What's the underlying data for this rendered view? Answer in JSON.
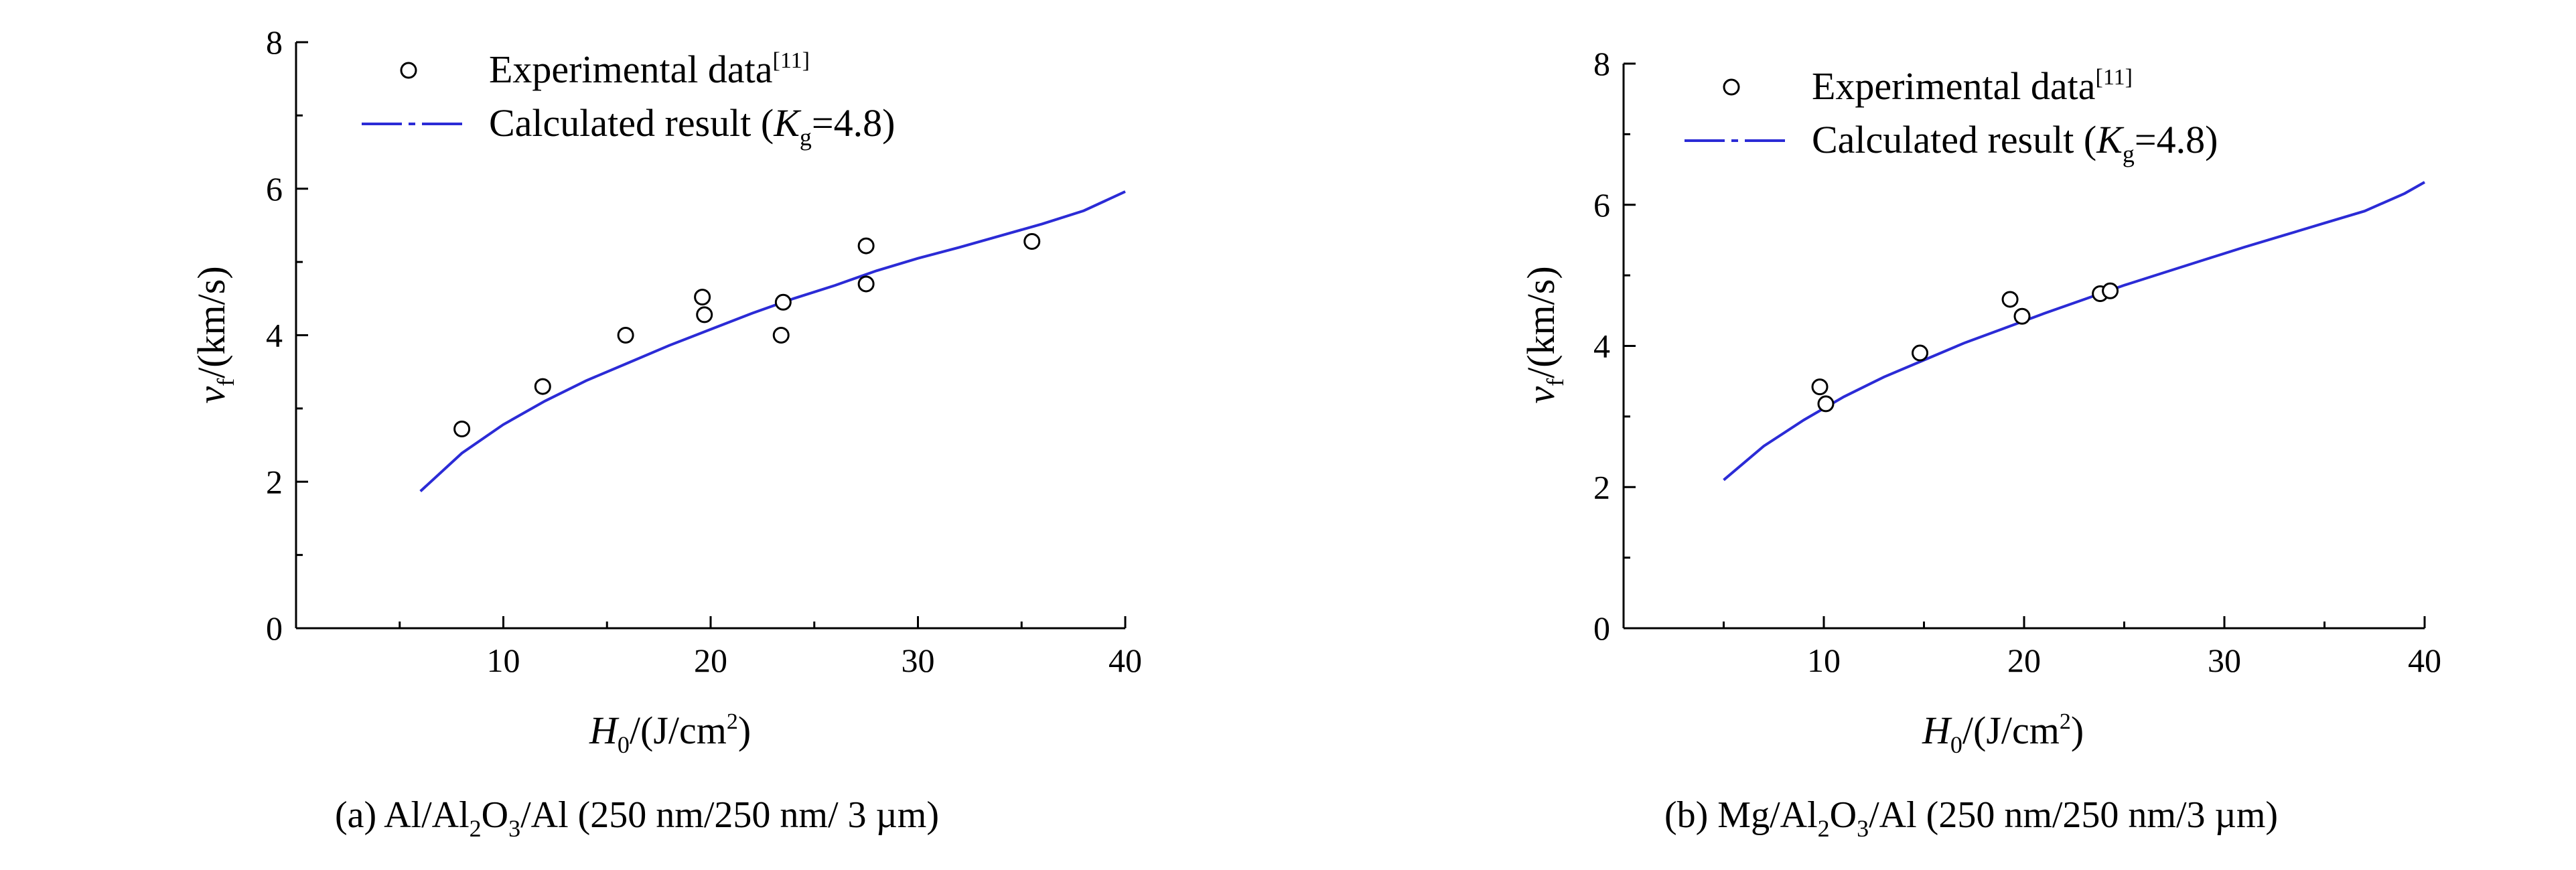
{
  "chart_data": [
    {
      "type": "scatter",
      "panel": "a",
      "caption": {
        "prefix": "(a)",
        "parts": [
          "Al/Al",
          "2",
          "O",
          "3",
          "/Al (250 nm/250 nm/ 3 µm)"
        ]
      },
      "xlabel": {
        "symbol": "H",
        "sub": "0",
        "unit": "/(J/cm",
        "sup": "2",
        "close": ")"
      },
      "ylabel": {
        "symbol": "v",
        "sub": "f",
        "unit": "/(km/s)"
      },
      "xlim": [
        0,
        40
      ],
      "ylim": [
        0,
        8
      ],
      "xticks": [
        10,
        20,
        30,
        40
      ],
      "yticks": [
        0,
        2,
        4,
        6,
        8
      ],
      "legend": {
        "position": "top-left",
        "experimental": {
          "label": "Experimental data",
          "sup": "[11]"
        },
        "calculated": {
          "label": "Calculated result (",
          "symbol": "K",
          "sub": "g",
          "rest": "=4.8)"
        }
      },
      "series": [
        {
          "name": "Experimental data",
          "points": [
            [
              8.0,
              2.72
            ],
            [
              11.9,
              3.3
            ],
            [
              15.9,
              4.0
            ],
            [
              19.6,
              4.52
            ],
            [
              19.7,
              4.28
            ],
            [
              23.4,
              4.0
            ],
            [
              23.5,
              4.45
            ],
            [
              27.5,
              5.22
            ],
            [
              27.5,
              4.7
            ],
            [
              35.5,
              5.28
            ]
          ]
        },
        {
          "name": "Calculated result",
          "x": [
            6,
            8,
            10,
            12,
            14,
            16,
            18,
            20,
            22,
            24,
            26,
            28,
            30,
            32,
            34,
            36,
            38,
            40
          ],
          "values": [
            1.87,
            2.39,
            2.78,
            3.1,
            3.38,
            3.62,
            3.86,
            4.08,
            4.3,
            4.5,
            4.68,
            4.88,
            5.05,
            5.2,
            5.36,
            5.52,
            5.7,
            5.96
          ]
        }
      ]
    },
    {
      "type": "scatter",
      "panel": "b",
      "caption": {
        "prefix": "(b)",
        "parts": [
          "Mg/Al",
          "2",
          "O",
          "3",
          "/Al (250 nm/250 nm/3 µm)"
        ]
      },
      "xlabel": {
        "symbol": "H",
        "sub": "0",
        "unit": "/(J/cm",
        "sup": "2",
        "close": ")"
      },
      "ylabel": {
        "symbol": "v",
        "sub": "f",
        "unit": "/(km/s)"
      },
      "xlim": [
        0,
        40
      ],
      "ylim": [
        0,
        8
      ],
      "xticks": [
        10,
        20,
        30,
        40
      ],
      "yticks": [
        0,
        2,
        4,
        6,
        8
      ],
      "legend": {
        "position": "top-left",
        "experimental": {
          "label": "Experimental data",
          "sup": "[11]"
        },
        "calculated": {
          "label": "Calculated result (",
          "symbol": "K",
          "sub": "g",
          "rest": "=4.8)"
        }
      },
      "series": [
        {
          "name": "Experimental data",
          "points": [
            [
              9.8,
              3.42
            ],
            [
              10.1,
              3.18
            ],
            [
              14.8,
              3.9
            ],
            [
              19.3,
              4.66
            ],
            [
              19.9,
              4.42
            ],
            [
              23.8,
              4.74
            ],
            [
              24.3,
              4.78
            ]
          ]
        },
        {
          "name": "Calculated result",
          "x": [
            5,
            7,
            9,
            11,
            13,
            15,
            17,
            19,
            21,
            23,
            25,
            27,
            29,
            31,
            33,
            35,
            37,
            39,
            40
          ],
          "values": [
            2.1,
            2.58,
            2.95,
            3.28,
            3.56,
            3.8,
            4.04,
            4.25,
            4.46,
            4.66,
            4.86,
            5.04,
            5.22,
            5.4,
            5.57,
            5.74,
            5.91,
            6.16,
            6.32
          ]
        }
      ]
    }
  ],
  "colors": {
    "curve": "#2b2bd6",
    "axis": "#000000",
    "marker_stroke": "#000000",
    "marker_fill": "#ffffff"
  }
}
